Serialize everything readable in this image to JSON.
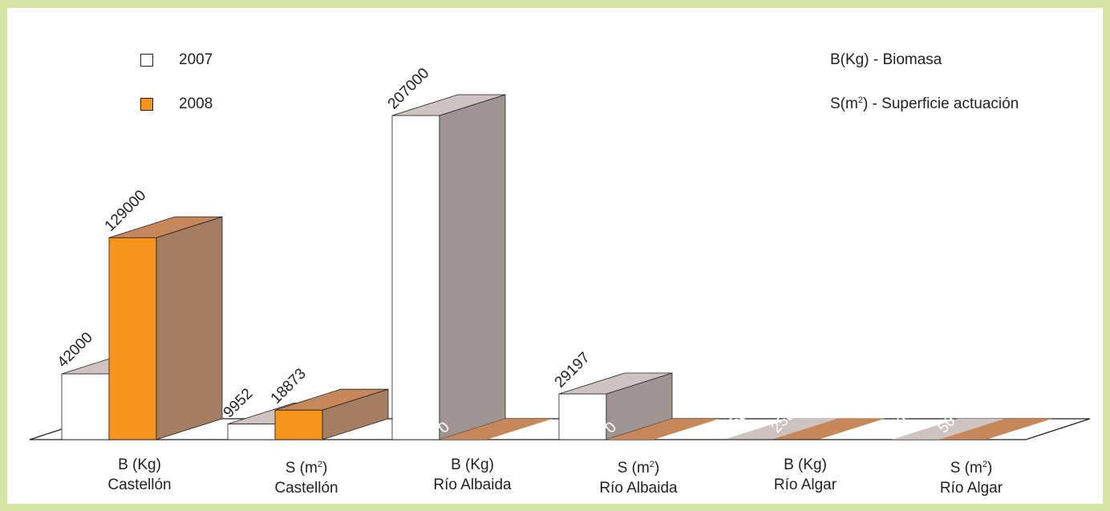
{
  "legend": {
    "items": [
      {
        "label": "2007",
        "color": "#ffffff"
      },
      {
        "label": "2008",
        "color": "#f7941d"
      }
    ]
  },
  "notes": {
    "biomasa": {
      "prefix": "B(Kg) - Biomasa"
    },
    "superficie": {
      "prefix": "S(m",
      "sup": "2",
      "suffix": ") - Superficie actuación"
    }
  },
  "categories": [
    {
      "line1_prefix": "B (Kg)",
      "line2": "Castellón"
    },
    {
      "line1_prefix": "S (m",
      "sup": "2",
      "line1_suffix": ")",
      "line2": "Castellón"
    },
    {
      "line1_prefix": "B (Kg)",
      "line2": "Río Albaida"
    },
    {
      "line1_prefix": "S (m",
      "sup": "2",
      "line1_suffix": ")",
      "line2": "Río Albaida"
    },
    {
      "line1_prefix": "B (Kg)",
      "line2": "Río Algar"
    },
    {
      "line1_prefix": "S (m",
      "sup": "2",
      "line1_suffix": ")",
      "line2": "Río Algar"
    }
  ],
  "chart_data": {
    "type": "bar",
    "categories": [
      "B (Kg) Castellón",
      "S (m2) Castellón",
      "B (Kg) Río Albaida",
      "S (m2) Río Albaida",
      "B (Kg) Río Algar",
      "S (m2) Río Algar"
    ],
    "series": [
      {
        "name": "2007",
        "values": [
          42000,
          9952,
          207000,
          29197,
          250,
          50
        ],
        "labels": [
          "42000",
          "9952",
          "207000",
          "29197",
          "250",
          "50"
        ]
      },
      {
        "name": "2008",
        "values": [
          129000,
          18873,
          0,
          0,
          250,
          50
        ],
        "labels": [
          "129000",
          "18873",
          "0",
          "0",
          "250",
          "50"
        ]
      }
    ],
    "ylim": [
      0,
      207000
    ],
    "grid": false,
    "legend_position": "top-left",
    "colors": {
      "s2007_front": "#ffffff",
      "s2007_top": "#cdc4c1",
      "s2007_side": "#9e9592",
      "s2008_front": "#f7941d",
      "s2008_top": "#c6875a",
      "s2008_side": "#a47d63"
    }
  }
}
